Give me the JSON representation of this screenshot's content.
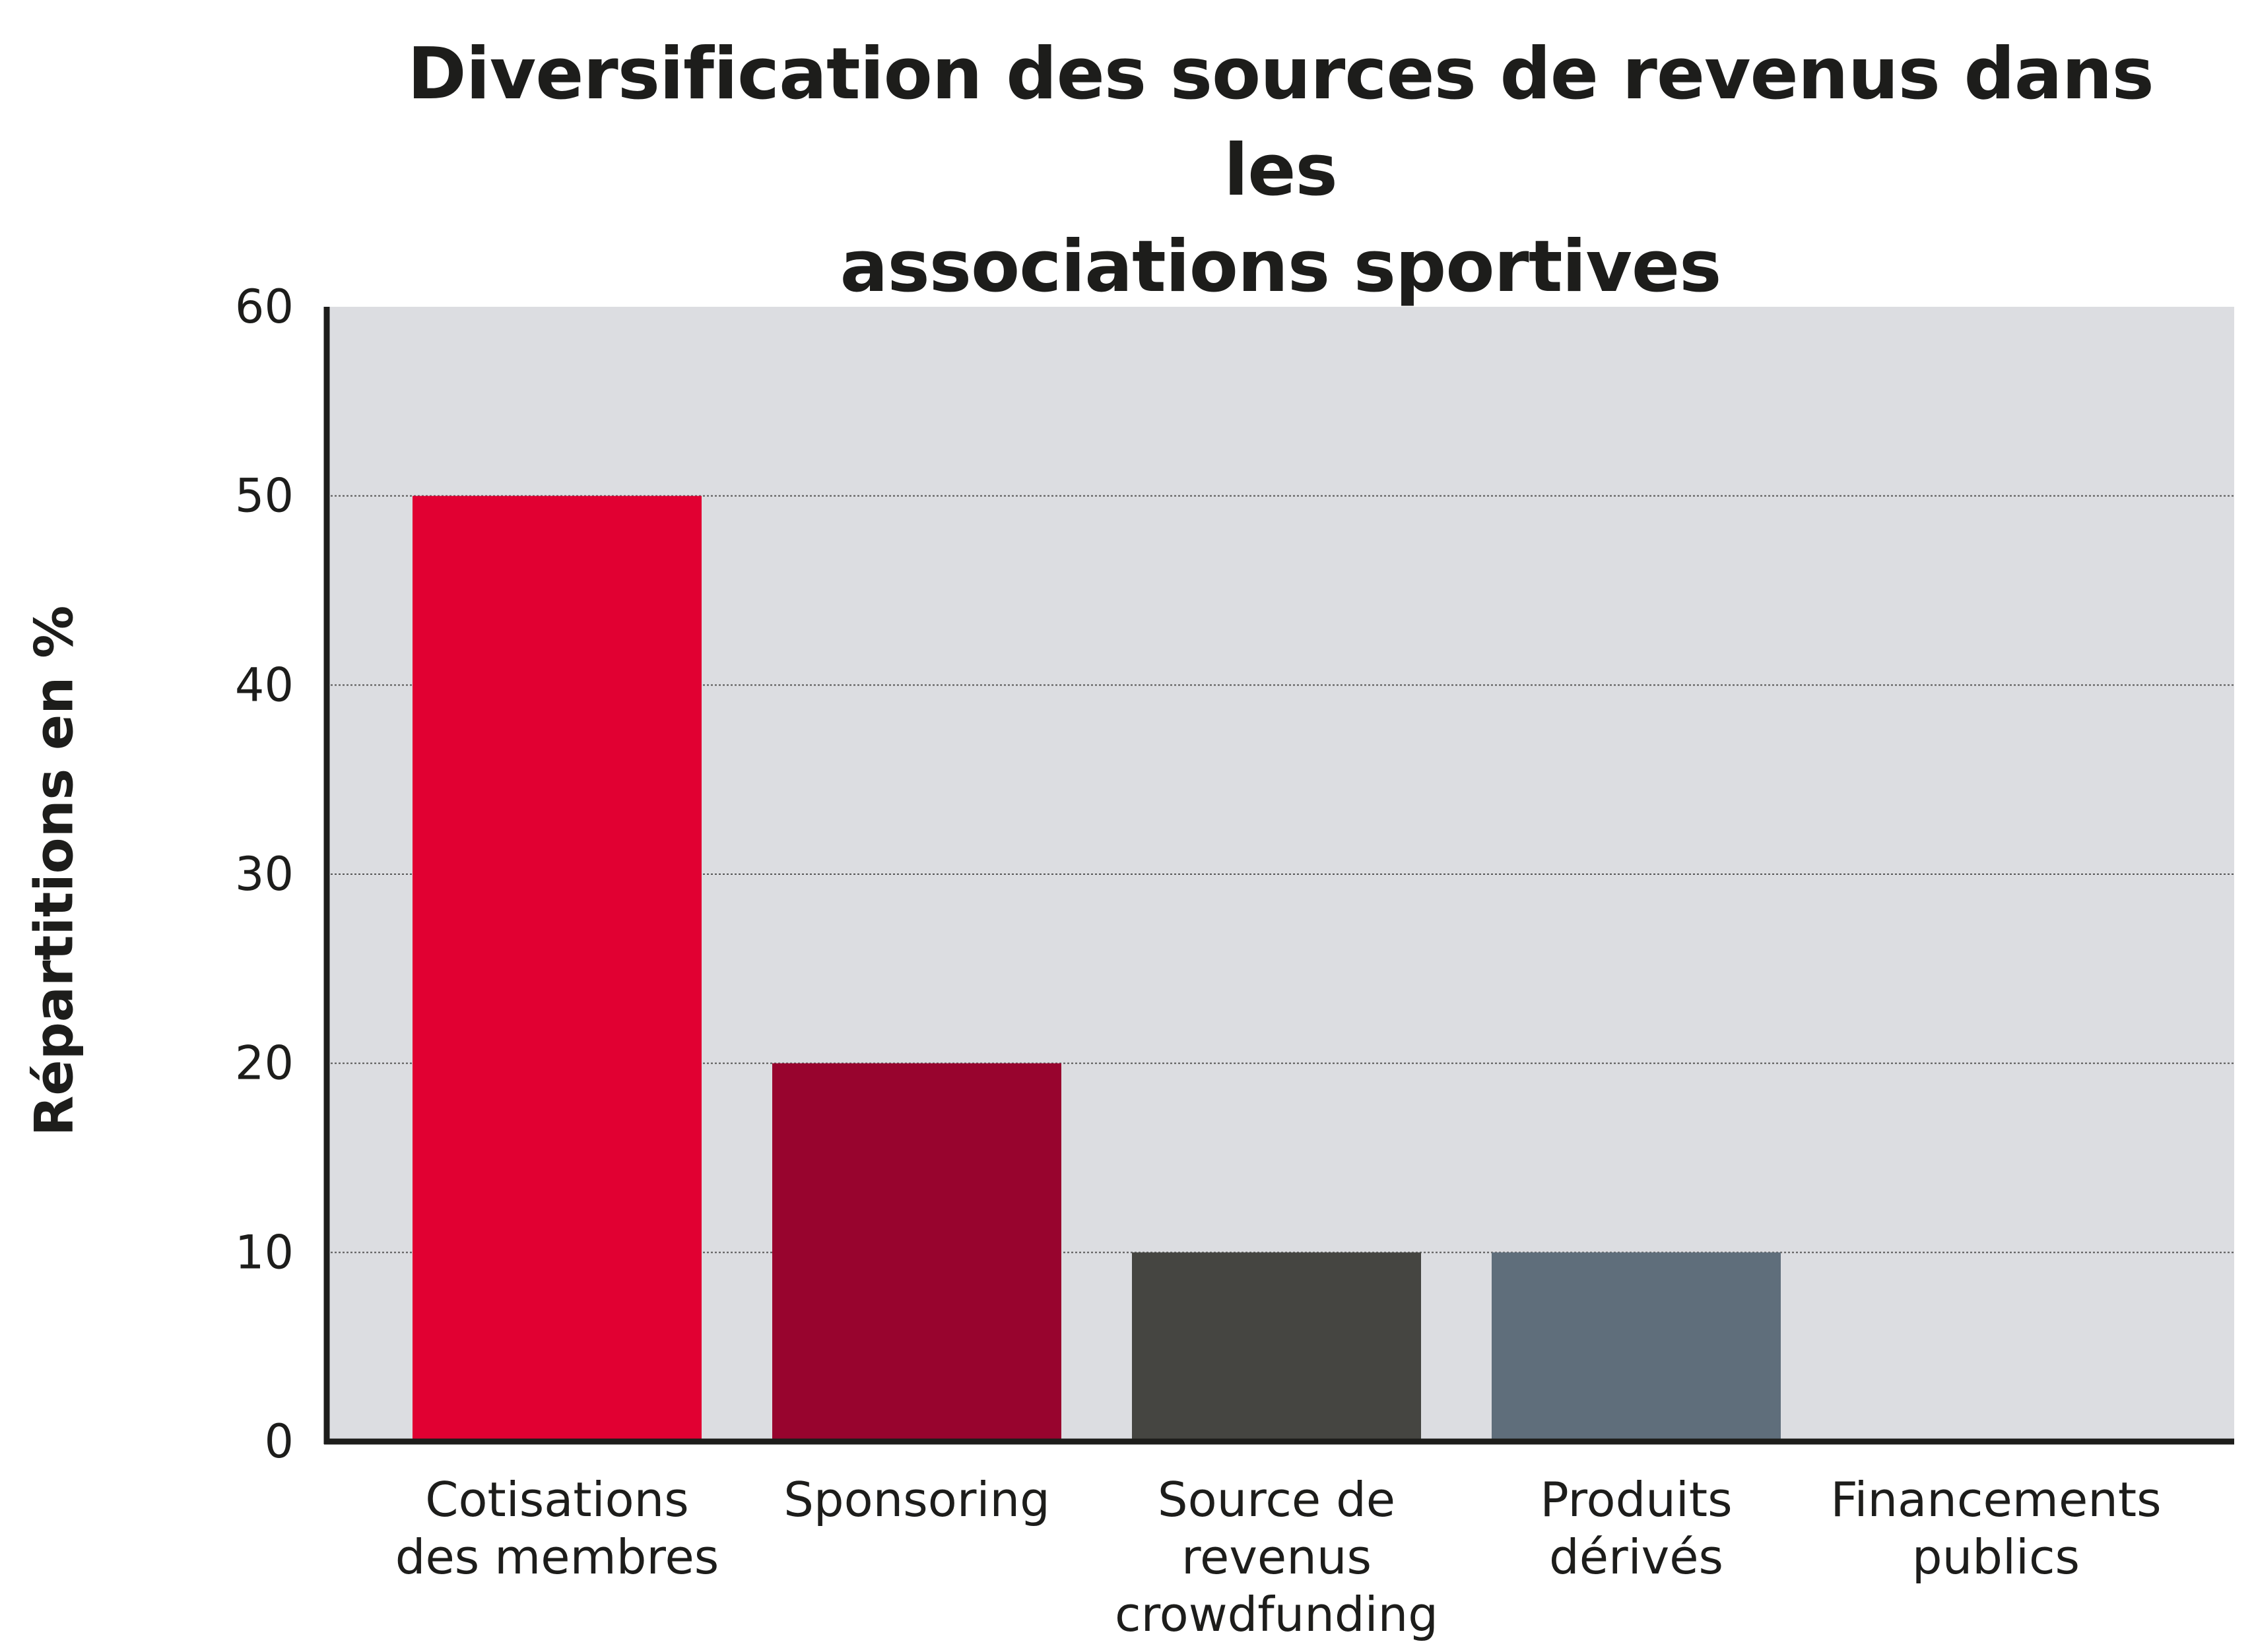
{
  "chart_data": {
    "type": "bar",
    "title_lines": [
      "Diversification des sources de revenus dans les",
      "associations sportives"
    ],
    "xlabel": "",
    "ylabel": "Répartitions en %",
    "ylim": [
      0,
      60
    ],
    "yticks": [
      0,
      10,
      20,
      30,
      40,
      50,
      60
    ],
    "grid": true,
    "categories": [
      [
        "Cotisations",
        "des membres"
      ],
      [
        "Sponsoring"
      ],
      [
        "Source de",
        "revenus",
        "crowdfunding"
      ],
      [
        "Produits",
        "dérivés"
      ],
      [
        "Financements",
        "publics"
      ]
    ],
    "values": [
      50,
      20,
      10,
      10,
      0
    ],
    "colors": [
      "#e10032",
      "#98042e",
      "#454541",
      "#5f6e7b",
      "#5f6e7b"
    ],
    "plot_background": "#dcdde1",
    "axis_color": "#1d1d1b"
  }
}
